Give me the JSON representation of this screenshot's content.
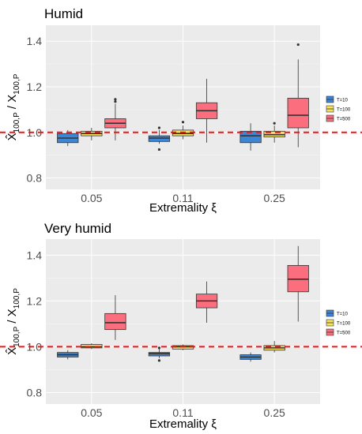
{
  "chart_data": [
    {
      "type": "boxplot",
      "title": "Humid",
      "xlabel": "Extremality ξ",
      "ylabel": "X̂100,P / X100,P",
      "categories": [
        "0.05",
        "0.11",
        "0.25"
      ],
      "ylim": [
        0.75,
        1.47
      ],
      "yticks": [
        0.8,
        1.0,
        1.2,
        1.4
      ],
      "yticklabels": [
        "0.8",
        "1.0",
        "1.2",
        "1.4"
      ],
      "reference_line": 1.0,
      "grid": true,
      "legend_position": "right",
      "series": [
        {
          "name": "T=10",
          "color": "#3c86d8",
          "boxes": [
            {
              "category": "0.05",
              "lower": 0.94,
              "q1": 0.955,
              "median": 0.975,
              "q3": 0.995,
              "upper": 1.01,
              "outliers": []
            },
            {
              "category": "0.11",
              "lower": 0.95,
              "q1": 0.96,
              "median": 0.975,
              "q3": 0.985,
              "upper": 1.01,
              "outliers": [
                1.02,
                0.925
              ]
            },
            {
              "category": "0.25",
              "lower": 0.92,
              "q1": 0.955,
              "median": 0.985,
              "q3": 1.005,
              "upper": 1.04,
              "outliers": []
            }
          ]
        },
        {
          "name": "T=100",
          "color": "#f4e35a",
          "boxes": [
            {
              "category": "0.05",
              "lower": 0.965,
              "q1": 0.985,
              "median": 0.995,
              "q3": 1.005,
              "upper": 1.02,
              "outliers": []
            },
            {
              "category": "0.11",
              "lower": 0.97,
              "q1": 0.985,
              "median": 0.995,
              "q3": 1.01,
              "upper": 1.03,
              "outliers": [
                1.045
              ]
            },
            {
              "category": "0.25",
              "lower": 0.955,
              "q1": 0.98,
              "median": 0.99,
              "q3": 1.005,
              "upper": 1.03,
              "outliers": [
                1.04
              ]
            }
          ]
        },
        {
          "name": "T=500",
          "color": "#fb6e7d",
          "boxes": [
            {
              "category": "0.05",
              "lower": 0.965,
              "q1": 1.02,
              "median": 1.04,
              "q3": 1.06,
              "upper": 1.125,
              "outliers": [
                1.135,
                1.145
              ]
            },
            {
              "category": "0.11",
              "lower": 0.955,
              "q1": 1.06,
              "median": 1.095,
              "q3": 1.13,
              "upper": 1.235,
              "outliers": []
            },
            {
              "category": "0.25",
              "lower": 0.935,
              "q1": 1.02,
              "median": 1.075,
              "q3": 1.15,
              "upper": 1.32,
              "outliers": [
                1.385
              ]
            }
          ]
        }
      ]
    },
    {
      "type": "boxplot",
      "title": "Very humid",
      "xlabel": "Extremality ξ",
      "ylabel": "X̂100,P / X100,P",
      "categories": [
        "0.05",
        "0.11",
        "0.25"
      ],
      "ylim": [
        0.75,
        1.47
      ],
      "yticks": [
        0.8,
        1.0,
        1.2,
        1.4
      ],
      "yticklabels": [
        "0.8",
        "1.0",
        "1.2",
        "1.4"
      ],
      "reference_line": 1.0,
      "grid": true,
      "legend_position": "right",
      "series": [
        {
          "name": "T=10",
          "color": "#3c86d8",
          "boxes": [
            {
              "category": "0.05",
              "lower": 0.945,
              "q1": 0.955,
              "median": 0.965,
              "q3": 0.975,
              "upper": 0.985,
              "outliers": []
            },
            {
              "category": "0.11",
              "lower": 0.95,
              "q1": 0.96,
              "median": 0.97,
              "q3": 0.975,
              "upper": 0.99,
              "outliers": [
                0.94,
                0.995
              ]
            },
            {
              "category": "0.25",
              "lower": 0.935,
              "q1": 0.945,
              "median": 0.955,
              "q3": 0.965,
              "upper": 0.975,
              "outliers": []
            }
          ]
        },
        {
          "name": "T=100",
          "color": "#f4e35a",
          "boxes": [
            {
              "category": "0.05",
              "lower": 0.99,
              "q1": 0.995,
              "median": 1.0,
              "q3": 1.01,
              "upper": 1.015,
              "outliers": []
            },
            {
              "category": "0.11",
              "lower": 0.985,
              "q1": 0.99,
              "median": 1.0,
              "q3": 1.005,
              "upper": 1.01,
              "outliers": []
            },
            {
              "category": "0.25",
              "lower": 0.975,
              "q1": 0.985,
              "median": 0.995,
              "q3": 1.005,
              "upper": 1.025,
              "outliers": []
            }
          ]
        },
        {
          "name": "T=500",
          "color": "#fb6e7d",
          "boxes": [
            {
              "category": "0.05",
              "lower": 1.03,
              "q1": 1.075,
              "median": 1.105,
              "q3": 1.145,
              "upper": 1.225,
              "outliers": []
            },
            {
              "category": "0.11",
              "lower": 1.105,
              "q1": 1.17,
              "median": 1.2,
              "q3": 1.23,
              "upper": 1.285,
              "outliers": []
            },
            {
              "category": "0.25",
              "lower": 1.11,
              "q1": 1.24,
              "median": 1.295,
              "q3": 1.355,
              "upper": 1.44,
              "outliers": []
            }
          ]
        }
      ]
    }
  ]
}
